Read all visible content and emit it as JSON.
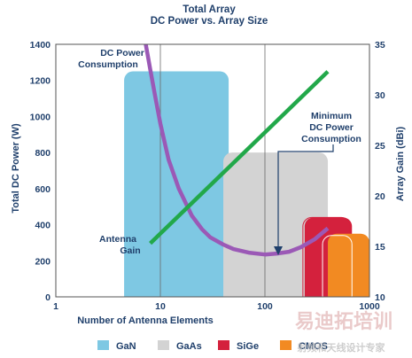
{
  "chart_data": {
    "type": "line",
    "title": "Total Array",
    "subtitle": "DC Power vs. Array Size",
    "xlabel": "Number of Antenna Elements",
    "ylabel_left": "Total DC Power (W)",
    "ylabel_right": "Array Gain (dBi)",
    "x_scale": "log",
    "xlim": [
      1,
      1000
    ],
    "ylim_left": [
      0,
      1400
    ],
    "ylim_right": [
      10,
      35
    ],
    "x_ticks": [
      1,
      10,
      100,
      1000
    ],
    "y_ticks_left": [
      0,
      200,
      400,
      600,
      800,
      1000,
      1200,
      1400
    ],
    "y_ticks_right": [
      10,
      15,
      20,
      25,
      30,
      35
    ],
    "grid": "vertical",
    "series": [
      {
        "name": "DC Power Consumption",
        "axis": "left",
        "color": "#9b59b6",
        "x": [
          7,
          8,
          9,
          10,
          12,
          15,
          20,
          25,
          30,
          40,
          50,
          70,
          100,
          130,
          170,
          220,
          300,
          400
        ],
        "y": [
          1450,
          1260,
          1100,
          960,
          760,
          600,
          450,
          375,
          330,
          290,
          265,
          245,
          235,
          240,
          250,
          275,
          320,
          380
        ]
      },
      {
        "name": "Antenna Gain",
        "axis": "right",
        "color": "#22a84a",
        "x": [
          8,
          400
        ],
        "y": [
          15.3,
          32.3
        ]
      }
    ],
    "regions": [
      {
        "name": "GaN",
        "color": "#7ec8e3",
        "x_range": [
          4.5,
          45
        ],
        "y_range": [
          0,
          1250
        ]
      },
      {
        "name": "GaAs",
        "color": "#d3d3d3",
        "x_range": [
          40,
          400
        ],
        "y_range": [
          0,
          800
        ]
      },
      {
        "name": "SiGe",
        "color": "#d4213d",
        "x_range": [
          240,
          680
        ],
        "y_range": [
          0,
          440
        ]
      },
      {
        "name": "CMOS",
        "color": "#f28a22",
        "x_range": [
          400,
          1000
        ],
        "y_range": [
          0,
          350
        ]
      }
    ],
    "annotations": [
      {
        "text_lines": [
          "DC Power",
          "Consumption"
        ]
      },
      {
        "text_lines": [
          "Antenna",
          "Gain"
        ]
      },
      {
        "text_lines": [
          "Minimum",
          "DC Power",
          "Consumption"
        ]
      }
    ],
    "legend": {
      "placement": "bottom",
      "entries": [
        "GaN",
        "GaAs",
        "SiGe",
        "CMOS"
      ]
    }
  },
  "watermark": {
    "text_large": "易迪拓培训",
    "text_small": "射频和天线设计专家"
  }
}
